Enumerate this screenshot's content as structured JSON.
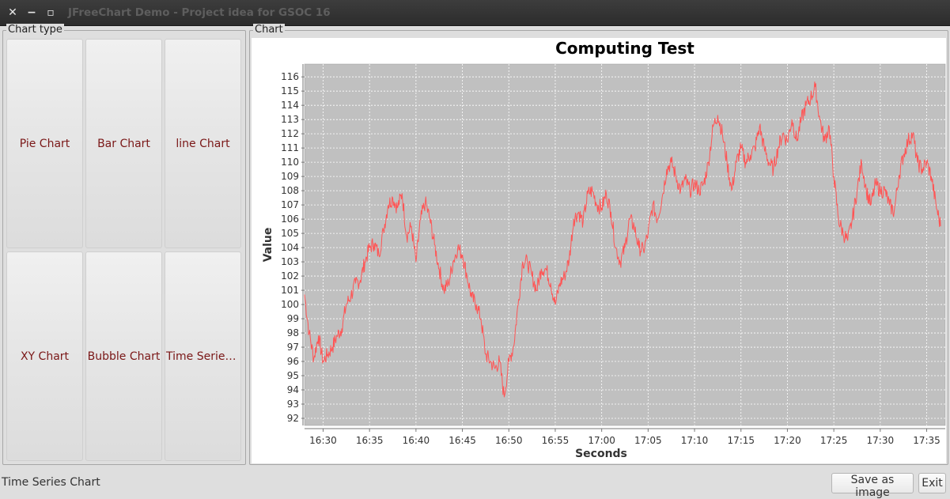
{
  "window": {
    "title": "JFreeChart Demo - Project idea for GSOC 16",
    "close_glyph": "✕",
    "minimize_glyph": "−",
    "maximize_glyph": "▫"
  },
  "chart_type_panel": {
    "label": "Chart type",
    "buttons": [
      "Pie Chart",
      "Bar Chart",
      "line Chart",
      "XY Chart",
      "Bubble Chart",
      "Time Series Chart"
    ]
  },
  "chart_panel": {
    "label": "Chart"
  },
  "status": {
    "text": "Time Series Chart"
  },
  "actions": {
    "save_label": "Save as image",
    "exit_label": "Exit"
  },
  "colors": {
    "plot_bg": "#c0c0c0",
    "series": "#ff5555",
    "button_text": "#7a1717"
  },
  "chart_data": {
    "type": "line",
    "title": "Computing Test",
    "xlabel": "Seconds",
    "ylabel": "Value",
    "ylim": [
      91.5,
      116.9
    ],
    "xlim": [
      "16:28",
      "17:37"
    ],
    "x_ticks": [
      "16:30",
      "16:35",
      "16:40",
      "16:45",
      "16:50",
      "16:55",
      "17:00",
      "17:05",
      "17:10",
      "17:15",
      "17:20",
      "17:25",
      "17:30",
      "17:35"
    ],
    "y_ticks": [
      92,
      93,
      94,
      95,
      96,
      97,
      98,
      99,
      100,
      101,
      102,
      103,
      104,
      105,
      106,
      107,
      108,
      109,
      110,
      111,
      112,
      113,
      114,
      115,
      116
    ],
    "grid": true,
    "series": [
      {
        "x": [
          "16:28:00",
          "16:28:30",
          "16:29:00",
          "16:29:30",
          "16:30:00",
          "16:30:30",
          "16:31:00",
          "16:31:30",
          "16:32:00",
          "16:32:30",
          "16:33:00",
          "16:33:30",
          "16:34:00",
          "16:34:30",
          "16:35:00",
          "16:35:30",
          "16:36:00",
          "16:36:30",
          "16:37:00",
          "16:37:30",
          "16:38:00",
          "16:38:30",
          "16:39:00",
          "16:39:30",
          "16:40:00",
          "16:40:30",
          "16:41:00",
          "16:41:30",
          "16:42:00",
          "16:42:30",
          "16:43:00",
          "16:43:30",
          "16:44:00",
          "16:44:30",
          "16:45:00",
          "16:45:30",
          "16:46:00",
          "16:46:30",
          "16:47:00",
          "16:47:30",
          "16:48:00",
          "16:48:30",
          "16:49:00",
          "16:49:30",
          "16:50:00",
          "16:50:30",
          "16:51:00",
          "16:51:30",
          "16:52:00",
          "16:52:30",
          "16:53:00",
          "16:53:30",
          "16:54:00",
          "16:54:30",
          "16:55:00",
          "16:55:30",
          "16:56:00",
          "16:56:30",
          "16:57:00",
          "16:57:30",
          "16:58:00",
          "16:58:30",
          "16:59:00",
          "16:59:30",
          "17:00:00",
          "17:00:30",
          "17:01:00",
          "17:01:30",
          "17:02:00",
          "17:02:30",
          "17:03:00",
          "17:03:30",
          "17:04:00",
          "17:04:30",
          "17:05:00",
          "17:05:30",
          "17:06:00",
          "17:06:30",
          "17:07:00",
          "17:07:30",
          "17:08:00",
          "17:08:30",
          "17:09:00",
          "17:09:30",
          "17:10:00",
          "17:10:30",
          "17:11:00",
          "17:11:30",
          "17:12:00",
          "17:12:30",
          "17:13:00",
          "17:13:30",
          "17:14:00",
          "17:14:30",
          "17:15:00",
          "17:15:30",
          "17:16:00",
          "17:16:30",
          "17:17:00",
          "17:17:30",
          "17:18:00",
          "17:18:30",
          "17:19:00",
          "17:19:30",
          "17:20:00",
          "17:20:30",
          "17:21:00",
          "17:21:30",
          "17:22:00",
          "17:22:30",
          "17:23:00",
          "17:23:30",
          "17:24:00",
          "17:24:30",
          "17:25:00",
          "17:25:30",
          "17:26:00",
          "17:26:30",
          "17:27:00",
          "17:27:30",
          "17:28:00",
          "17:28:30",
          "17:29:00",
          "17:29:30",
          "17:30:00",
          "17:30:30",
          "17:31:00",
          "17:31:30",
          "17:32:00",
          "17:32:30",
          "17:33:00",
          "17:33:30",
          "17:34:00",
          "17:34:30",
          "17:35:00",
          "17:35:30",
          "17:36:00",
          "17:36:30"
        ],
        "y": [
          100.7,
          98.0,
          96.2,
          97.8,
          96.0,
          96.5,
          97.0,
          97.8,
          98.3,
          100.0,
          100.6,
          101.5,
          101.7,
          103.0,
          104.0,
          104.3,
          103.5,
          105.2,
          107.0,
          107.5,
          106.8,
          107.8,
          104.8,
          105.5,
          103.0,
          106.0,
          107.2,
          106.0,
          104.2,
          102.5,
          101.0,
          101.5,
          103.0,
          104.0,
          103.5,
          102.0,
          100.5,
          100.0,
          99.0,
          96.5,
          96.0,
          95.5,
          96.0,
          93.5,
          96.0,
          97.0,
          100.0,
          103.0,
          103.0,
          102.0,
          101.0,
          102.5,
          102.5,
          101.5,
          100.0,
          101.5,
          102.0,
          103.2,
          106.0,
          106.5,
          105.8,
          107.8,
          108.0,
          107.0,
          106.8,
          107.8,
          106.5,
          104.0,
          103.0,
          104.0,
          106.0,
          105.5,
          104.0,
          103.8,
          105.0,
          107.0,
          106.0,
          107.5,
          109.5,
          110.0,
          109.0,
          108.0,
          108.8,
          108.0,
          108.5,
          108.0,
          108.5,
          110.0,
          112.5,
          113.3,
          112.0,
          110.0,
          108.0,
          110.0,
          111.0,
          110.0,
          110.5,
          111.0,
          112.5,
          111.0,
          110.0,
          109.5,
          111.0,
          112.0,
          111.5,
          113.0,
          111.5,
          113.0,
          114.0,
          114.5,
          115.3,
          113.0,
          111.5,
          112.5,
          109.0,
          106.0,
          105.0,
          104.5,
          106.0,
          108.0,
          110.0,
          108.0,
          107.0,
          108.5,
          108.0,
          108.0,
          107.0,
          106.5,
          109.0,
          110.5,
          111.5,
          112.0,
          110.0,
          109.5,
          110.0,
          109.0,
          107.0,
          105.5
        ]
      }
    ]
  }
}
